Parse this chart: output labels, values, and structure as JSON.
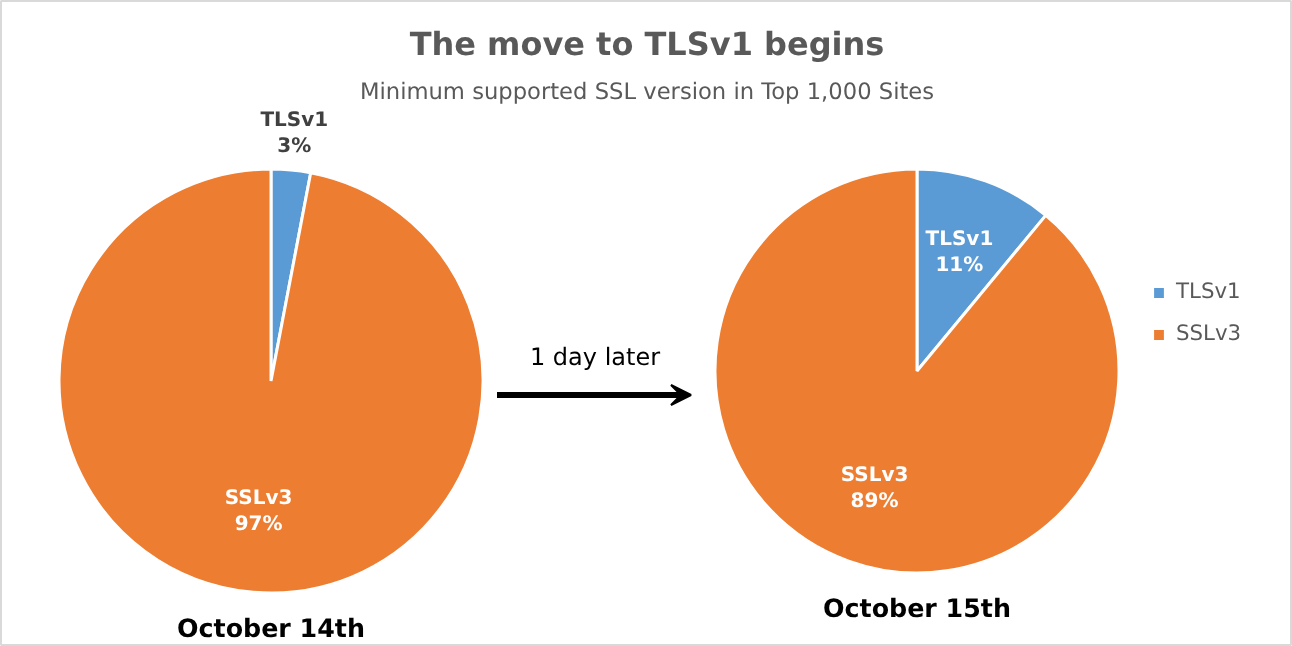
{
  "chart_data": [
    {
      "type": "pie",
      "title": "The move to TLSv1 begins",
      "subtitle": "Minimum supported SSL version in Top 1,000 Sites",
      "xlabel": "October 14th",
      "categories": [
        "TLSv1",
        "SSLv3"
      ],
      "values": [
        3,
        97
      ],
      "colors": [
        "#5b9bd5",
        "#ed7d31"
      ],
      "value_labels": [
        "3%",
        "97%"
      ],
      "annotations": [
        "1 day later"
      ]
    },
    {
      "type": "pie",
      "xlabel": "October 15th",
      "categories": [
        "TLSv1",
        "SSLv3"
      ],
      "values": [
        11,
        89
      ],
      "colors": [
        "#5b9bd5",
        "#ed7d31"
      ],
      "value_labels": [
        "11%",
        "89%"
      ],
      "legend": "right"
    }
  ]
}
